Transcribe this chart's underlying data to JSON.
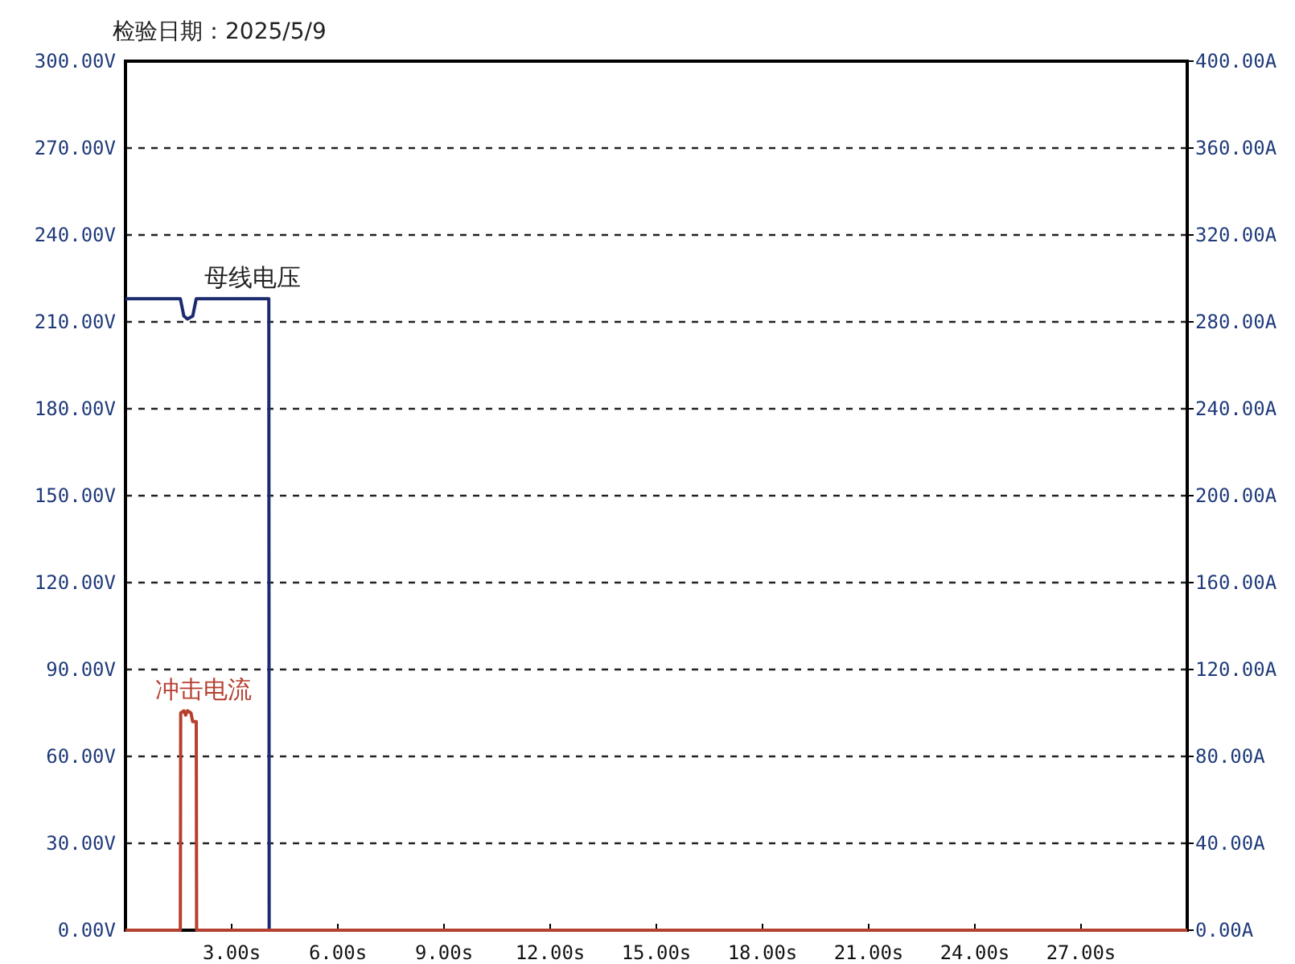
{
  "chart_data": {
    "type": "line",
    "title": "检验日期：2025/5/9",
    "xlim": [
      0,
      30
    ],
    "xticks": [
      {
        "value": 3,
        "label": "3.00s"
      },
      {
        "value": 6,
        "label": "6.00s"
      },
      {
        "value": 9,
        "label": "9.00s"
      },
      {
        "value": 12,
        "label": "12.00s"
      },
      {
        "value": 15,
        "label": "15.00s"
      },
      {
        "value": 18,
        "label": "18.00s"
      },
      {
        "value": 21,
        "label": "21.00s"
      },
      {
        "value": 24,
        "label": "24.00s"
      },
      {
        "value": 27,
        "label": "27.00s"
      }
    ],
    "ylim": [
      0,
      300
    ],
    "yticks": [
      {
        "value": 0,
        "label": "0.00V"
      },
      {
        "value": 30,
        "label": "30.00V"
      },
      {
        "value": 60,
        "label": "60.00V"
      },
      {
        "value": 90,
        "label": "90.00V"
      },
      {
        "value": 120,
        "label": "120.00V"
      },
      {
        "value": 150,
        "label": "150.00V"
      },
      {
        "value": 180,
        "label": "180.00V"
      },
      {
        "value": 210,
        "label": "210.00V"
      },
      {
        "value": 240,
        "label": "240.00V"
      },
      {
        "value": 270,
        "label": "270.00V"
      },
      {
        "value": 300,
        "label": "300.00V"
      }
    ],
    "y2lim": [
      0,
      400
    ],
    "y2ticks": [
      {
        "value": 0,
        "label": "0.00A"
      },
      {
        "value": 40,
        "label": "40.00A"
      },
      {
        "value": 80,
        "label": "80.00A"
      },
      {
        "value": 120,
        "label": "120.00A"
      },
      {
        "value": 160,
        "label": "160.00A"
      },
      {
        "value": 200,
        "label": "200.00A"
      },
      {
        "value": 240,
        "label": "240.00A"
      },
      {
        "value": 280,
        "label": "280.00A"
      },
      {
        "value": 320,
        "label": "320.00A"
      },
      {
        "value": 360,
        "label": "360.00A"
      },
      {
        "value": 400,
        "label": "400.00A"
      }
    ],
    "grid": "y",
    "series": [
      {
        "name": "母线电压",
        "color": "#1c2a6e",
        "axis": "y",
        "x": [
          0,
          1.55,
          1.65,
          1.75,
          1.9,
          2.0,
          4.05,
          4.06
        ],
        "values": [
          218,
          218,
          212,
          211,
          212,
          218,
          218,
          0
        ]
      },
      {
        "name": "冲击电流",
        "color": "#b5402f",
        "axis": "y2",
        "x": [
          0,
          1.55,
          1.56,
          1.65,
          1.7,
          1.75,
          1.85,
          1.9,
          2.0,
          2.01,
          30
        ],
        "values": [
          0,
          0,
          100,
          101,
          99,
          101,
          100,
          96,
          96,
          0,
          0
        ]
      }
    ]
  }
}
